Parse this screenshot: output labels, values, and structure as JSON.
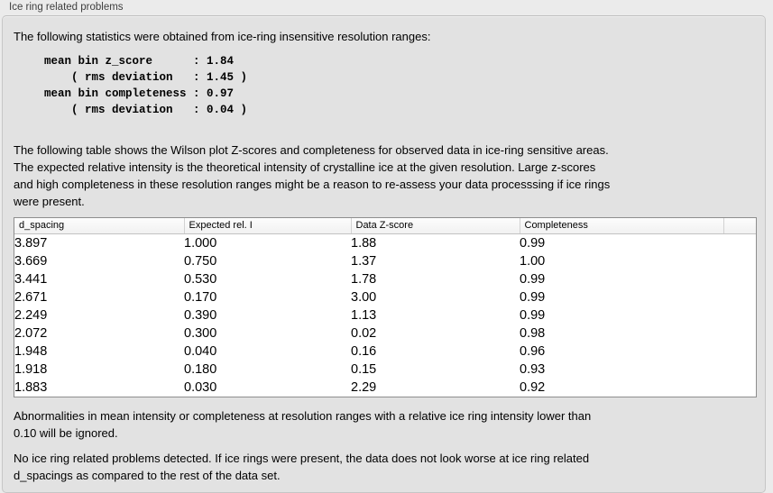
{
  "colors": {
    "window_bg": "#ebebeb",
    "panel_bg": "#e2e2e2",
    "table_bg": "#ffffff",
    "table_border": "#8e8e8e"
  },
  "groupbox": {
    "title": "Ice ring related problems"
  },
  "stats": {
    "intro": "The following statistics were obtained from ice-ring insensitive resolution ranges:",
    "block": "mean bin z_score      : 1.84\n    ( rms deviation   : 1.45 )\nmean bin completeness : 0.97\n    ( rms deviation   : 0.04 )",
    "mean_bin_z_score": "1.84",
    "z_score_rms_deviation": "1.45",
    "mean_bin_completeness": "0.97",
    "completeness_rms_deviation": "0.04"
  },
  "description": "The following table shows the Wilson plot Z-scores and completeness for observed data in ice-ring sensitive areas.\nThe expected relative intensity is the theoretical intensity of crystalline ice at the given resolution. Large z-scores\nand high completeness in these resolution ranges might be a reason to re-assess your data processsing if ice rings\nwere present.",
  "table": {
    "columns": [
      "d_spacing",
      "Expected rel. I",
      "Data Z-score",
      "Completeness",
      ""
    ],
    "rows": [
      [
        "3.897",
        "1.000",
        "1.88",
        "0.99"
      ],
      [
        "3.669",
        "0.750",
        "1.37",
        "1.00"
      ],
      [
        "3.441",
        "0.530",
        "1.78",
        "0.99"
      ],
      [
        "2.671",
        "0.170",
        "3.00",
        "0.99"
      ],
      [
        "2.249",
        "0.390",
        "1.13",
        "0.99"
      ],
      [
        "2.072",
        "0.300",
        "0.02",
        "0.98"
      ],
      [
        "1.948",
        "0.040",
        "0.16",
        "0.96"
      ],
      [
        "1.918",
        "0.180",
        "0.15",
        "0.93"
      ],
      [
        "1.883",
        "0.030",
        "2.29",
        "0.92"
      ]
    ]
  },
  "notes": {
    "ignore_note": "Abnormalities in mean intensity or completeness at resolution ranges with a relative ice ring intensity lower than\n0.10 will be ignored.",
    "conclusion": "No ice ring related problems detected. If ice rings were present, the data does not look worse at ice ring related\nd_spacings as compared to the rest of the data set."
  }
}
